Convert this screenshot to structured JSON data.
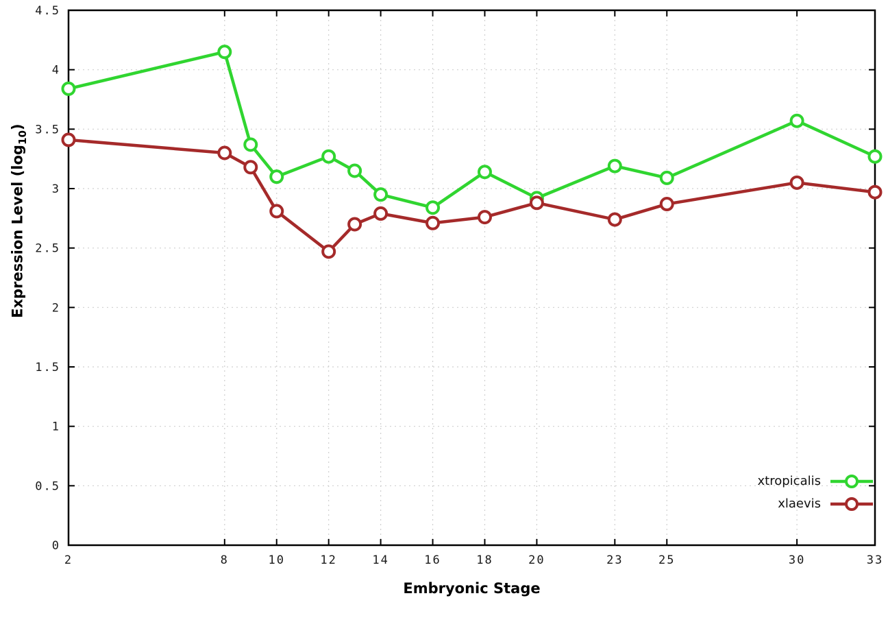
{
  "chart_data": {
    "type": "line",
    "title": "",
    "xlabel": "Embryonic Stage",
    "ylabel": "Expression Level (log10)",
    "ylabel_base": "Expression Level (log",
    "ylabel_sub": "10",
    "ylabel_close": ")",
    "x": [
      2,
      8,
      9,
      10,
      12,
      13,
      14,
      16,
      18,
      20,
      23,
      25,
      30,
      33
    ],
    "series": [
      {
        "name": "xtropicalis",
        "color": "#30d530",
        "values": [
          3.84,
          4.15,
          3.37,
          3.1,
          3.27,
          3.15,
          2.95,
          2.84,
          3.14,
          2.92,
          3.19,
          3.09,
          3.57,
          3.27
        ]
      },
      {
        "name": "xlaevis",
        "color": "#a52a2a",
        "values": [
          3.41,
          3.3,
          3.18,
          2.81,
          2.47,
          2.7,
          2.79,
          2.71,
          2.76,
          2.88,
          2.74,
          2.87,
          3.05,
          2.97
        ]
      }
    ],
    "xlim": [
      2,
      33
    ],
    "ylim": [
      0,
      4.5
    ],
    "xticks": [
      2,
      8,
      10,
      12,
      14,
      16,
      18,
      20,
      23,
      25,
      30,
      33
    ],
    "xtick_labels": [
      "2",
      "8",
      "10",
      "12",
      "14",
      "16",
      "18",
      "20",
      "23",
      "25",
      "30",
      "33"
    ],
    "yticks": [
      0,
      0.5,
      1,
      1.5,
      2,
      2.5,
      3,
      3.5,
      4,
      4.5
    ],
    "ytick_labels": [
      "0",
      "0.5",
      "1",
      "1.5",
      "2",
      "2.5",
      "3",
      "3.5",
      "4",
      "4.5"
    ],
    "grid": true,
    "legend_position": "bottom-right",
    "background_color": "#ffffff",
    "grid_color": "#cfcfcf",
    "axis_color": "#000000"
  }
}
